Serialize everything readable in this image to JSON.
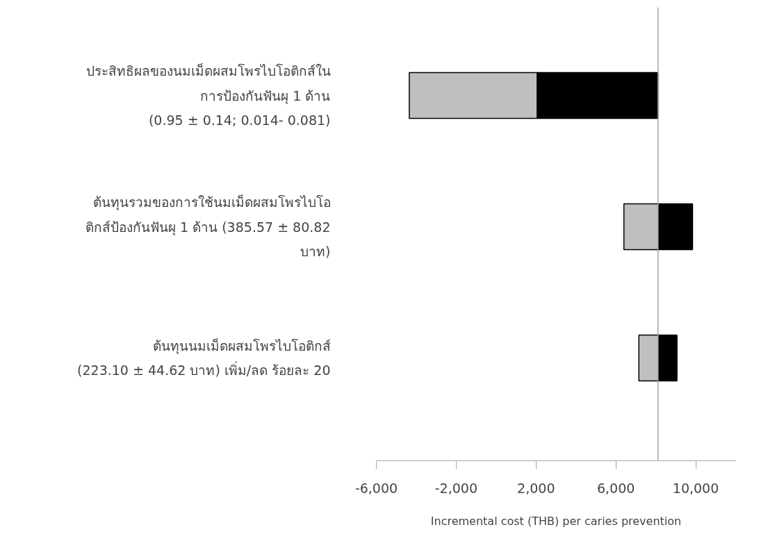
{
  "chart_data": {
    "type": "bar",
    "orientation": "horizontal",
    "xlabel": "Incremental cost (THB) per caries prevention",
    "categories": [
      "ประสิทธิผลของนมเม็ดผสมโพรไบโอติกส์ใน\nการป้องกันฟันผุ 1 ด้าน\n(0.95 ± 0.14; 0.014- 0.081)",
      "ต้นทุนรวมของการใช้นมเม็ดผสมโพรไบโอ\nติกส์ป้องกันฟันผุ 1 ด้าน (385.57 ± 80.82\nบาท)",
      "ต้นทุนนมเม็ดผสมโพรไบโอติกส์\n(223.10 ± 44.62 บาท) เพิ่ม/ลด ร้อยละ 20"
    ],
    "series": [
      {
        "color": "#bfbfbf",
        "base": [
          -4350,
          6400,
          7150
        ],
        "values": [
          6410,
          1710,
          960
        ]
      },
      {
        "color": "#000000",
        "base": [
          2060,
          8110,
          8110
        ],
        "values": [
          6050,
          1730,
          950
        ]
      }
    ],
    "xlim": [
      -6000,
      12000
    ],
    "xticks": [
      {
        "value": -6000,
        "label": "-6,000"
      },
      {
        "value": -2000,
        "label": "-2,000"
      },
      {
        "value": 2000,
        "label": "2,000"
      },
      {
        "value": 6000,
        "label": "6,000"
      },
      {
        "value": 10000,
        "label": "10,000"
      }
    ],
    "ref_lines": [
      {
        "axis": "x",
        "value": 8110,
        "color": "#a6a6a6"
      }
    ],
    "grid": false
  }
}
